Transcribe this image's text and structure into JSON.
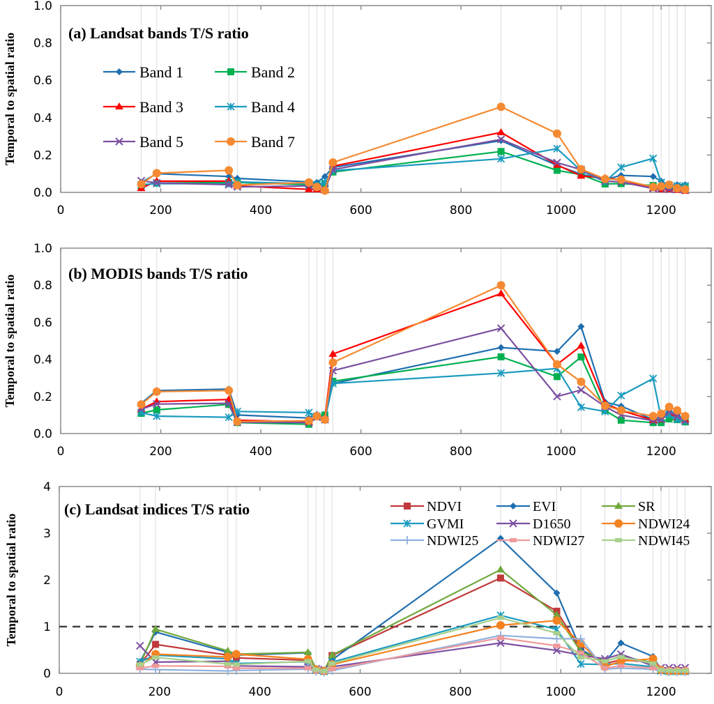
{
  "chart_data": [
    {
      "type": "line",
      "title": "(a) Landsat  bands T/S ratio",
      "xlabel": "",
      "ylabel": "Temporal to spatial ratio",
      "xlim": [
        0,
        1300
      ],
      "ylim": [
        0,
        1.0
      ],
      "xticks": [
        0,
        200,
        400,
        600,
        800,
        1000,
        1200
      ],
      "yticks": [
        0.0,
        0.2,
        0.4,
        0.6,
        0.8,
        1.0
      ],
      "ytick_labels": [
        "0.0",
        "0.2",
        "0.4",
        "0.6",
        "0.8",
        "1.0"
      ],
      "grid": "vertical lines at each observation date",
      "legend_position": "upper-left, 2 columns",
      "x": [
        161,
        192,
        336,
        353,
        496,
        512,
        528,
        544,
        880,
        992,
        1040,
        1088,
        1120,
        1184,
        1200,
        1216,
        1232,
        1248
      ],
      "series": [
        {
          "name": "Band 1",
          "color": "#1f6fb0",
          "marker": "diamond",
          "values": [
            0.053,
            0.1,
            0.085,
            0.075,
            0.056,
            0.053,
            0.085,
            0.134,
            0.277,
            0.144,
            0.097,
            0.068,
            0.091,
            0.085,
            0.06,
            0.035,
            0.041,
            0.041
          ]
        },
        {
          "name": "Band 2",
          "color": "#00b050",
          "marker": "square",
          "values": [
            0.035,
            0.05,
            0.053,
            0.053,
            0.041,
            0.035,
            0.047,
            0.109,
            0.219,
            0.118,
            0.095,
            0.045,
            0.047,
            0.037,
            0.029,
            0.025,
            0.022,
            0.029
          ]
        },
        {
          "name": "Band 3",
          "color": "#ff0000",
          "marker": "triangle",
          "values": [
            0.022,
            0.06,
            0.06,
            0.035,
            0.016,
            0.016,
            0.01,
            0.14,
            0.321,
            0.147,
            0.088,
            0.076,
            0.068,
            0.022,
            0.016,
            0.016,
            0.012,
            0.007
          ]
        },
        {
          "name": "Band 4",
          "color": "#1a9bbf",
          "marker": "asterisk",
          "values": [
            0.041,
            0.047,
            0.045,
            0.056,
            0.047,
            0.041,
            0.053,
            0.116,
            0.18,
            0.234,
            0.116,
            0.057,
            0.134,
            0.182,
            0.053,
            0.037,
            0.035,
            0.035
          ]
        },
        {
          "name": "Band 5",
          "color": "#7b4fa0",
          "marker": "x",
          "values": [
            0.062,
            0.051,
            0.041,
            0.029,
            0.035,
            0.029,
            0.016,
            0.122,
            0.284,
            0.159,
            0.122,
            0.06,
            0.056,
            0.02,
            0.02,
            0.016,
            0.016,
            0.012
          ]
        },
        {
          "name": "Band 7",
          "color": "#f58a32",
          "marker": "circle",
          "values": [
            0.044,
            0.103,
            0.118,
            0.039,
            0.053,
            0.029,
            0.01,
            0.16,
            0.458,
            0.315,
            0.124,
            0.072,
            0.068,
            0.029,
            0.032,
            0.041,
            0.022,
            0.016
          ]
        }
      ]
    },
    {
      "type": "line",
      "title": "(b) MODIS bands T/S ratio",
      "xlabel": "",
      "ylabel": "Temporal to spatial ratio",
      "xlim": [
        0,
        1300
      ],
      "ylim": [
        0,
        1.0
      ],
      "xticks": [
        0,
        200,
        400,
        600,
        800,
        1000,
        1200
      ],
      "yticks": [
        0.0,
        0.2,
        0.4,
        0.6,
        0.8,
        1.0
      ],
      "ytick_labels": [
        "0.0",
        "0.2",
        "0.4",
        "0.6",
        "0.8",
        "1.0"
      ],
      "grid": "vertical lines at each observation date",
      "x": [
        161,
        192,
        336,
        353,
        496,
        512,
        528,
        544,
        880,
        992,
        1040,
        1088,
        1120,
        1184,
        1200,
        1216,
        1232,
        1248
      ],
      "series": [
        {
          "name": "Band 1",
          "color": "#1f6fb0",
          "marker": "diamond",
          "values": [
            0.163,
            0.232,
            0.24,
            0.1,
            0.084,
            0.104,
            0.094,
            0.27,
            0.464,
            0.443,
            0.577,
            0.17,
            0.148,
            0.075,
            0.088,
            0.125,
            0.1,
            0.075
          ]
        },
        {
          "name": "Band 2",
          "color": "#00b050",
          "marker": "square",
          "values": [
            0.109,
            0.128,
            0.157,
            0.059,
            0.05,
            0.094,
            0.1,
            0.282,
            0.414,
            0.307,
            0.413,
            0.125,
            0.072,
            0.059,
            0.059,
            0.079,
            0.075,
            0.063
          ]
        },
        {
          "name": "Band 3",
          "color": "#ff0000",
          "marker": "triangle",
          "values": [
            0.132,
            0.172,
            0.184,
            0.072,
            0.063,
            0.094,
            0.082,
            0.429,
            0.755,
            0.373,
            0.473,
            0.163,
            0.125,
            0.072,
            0.075,
            0.107,
            0.088,
            0.075
          ]
        },
        {
          "name": "Band 4",
          "color": "#1a9bbf",
          "marker": "asterisk",
          "values": [
            0.113,
            0.094,
            0.088,
            0.119,
            0.113,
            0.094,
            0.075,
            0.27,
            0.326,
            0.351,
            0.142,
            0.119,
            0.205,
            0.297,
            0.082,
            0.1,
            0.075,
            0.066
          ]
        },
        {
          "name": "Band 5",
          "color": "#7b4fa0",
          "marker": "x",
          "values": [
            0.132,
            0.159,
            0.163,
            0.061,
            0.059,
            0.088,
            0.075,
            0.339,
            0.568,
            0.2,
            0.235,
            0.145,
            0.1,
            0.069,
            0.075,
            0.119,
            0.094,
            0.069
          ]
        },
        {
          "name": "Band 7",
          "color": "#f58a32",
          "marker": "circle",
          "values": [
            0.157,
            0.226,
            0.232,
            0.065,
            0.069,
            0.094,
            0.075,
            0.383,
            0.8,
            0.373,
            0.279,
            0.15,
            0.125,
            0.094,
            0.107,
            0.144,
            0.125,
            0.094
          ]
        }
      ]
    },
    {
      "type": "line",
      "title": "(c) Landsat indices T/S ratio",
      "xlabel": "",
      "ylabel": "Temporal to spatial ratio",
      "xlim": [
        0,
        1300
      ],
      "ylim": [
        0,
        4
      ],
      "xticks": [
        0,
        200,
        400,
        600,
        800,
        1000,
        1200
      ],
      "yticks": [
        0,
        1,
        2,
        3,
        4
      ],
      "ytick_labels": [
        "0",
        "1",
        "2",
        "3",
        "4"
      ],
      "grid": "vertical lines at each observation date",
      "reference_line": {
        "y": 1,
        "style": "dashed",
        "color": "#404040"
      },
      "legend_position": "upper-right, 3 columns",
      "x": [
        161,
        192,
        336,
        353,
        496,
        512,
        528,
        544,
        880,
        992,
        1040,
        1088,
        1120,
        1184,
        1200,
        1216,
        1232,
        1248
      ],
      "series": [
        {
          "name": "NDVI",
          "color": "#c0393b",
          "marker": "square",
          "values": [
            0.19,
            0.62,
            0.39,
            0.33,
            0.28,
            0.08,
            0.05,
            0.38,
            2.04,
            1.33,
            0.51,
            0.21,
            0.29,
            0.24,
            0.06,
            0.05,
            0.05,
            0.05
          ]
        },
        {
          "name": "EVI",
          "color": "#1f6fb0",
          "marker": "diamond",
          "values": [
            0.24,
            0.885,
            0.45,
            0.39,
            0.44,
            0.1,
            0.05,
            0.29,
            2.89,
            1.72,
            0.51,
            0.24,
            0.65,
            0.36,
            0.07,
            0.06,
            0.06,
            0.06
          ]
        },
        {
          "name": "SR",
          "color": "#70a83c",
          "marker": "triangle",
          "values": [
            0.19,
            0.945,
            0.48,
            0.41,
            0.45,
            0.09,
            0.06,
            0.39,
            2.22,
            1.25,
            0.46,
            0.26,
            0.36,
            0.23,
            0.06,
            0.05,
            0.05,
            0.05
          ]
        },
        {
          "name": "GVMI",
          "color": "#1a9bbf",
          "marker": "asterisk",
          "values": [
            0.25,
            0.39,
            0.31,
            0.21,
            0.25,
            0.07,
            0.04,
            0.24,
            1.24,
            0.94,
            0.2,
            0.19,
            0.21,
            0.14,
            0.05,
            0.04,
            0.04,
            0.04
          ]
        },
        {
          "name": "D1650",
          "color": "#7b4fa0",
          "marker": "x",
          "values": [
            0.59,
            0.24,
            0.26,
            0.16,
            0.14,
            0.1,
            0.08,
            0.14,
            0.65,
            0.49,
            0.39,
            0.31,
            0.41,
            0.16,
            0.12,
            0.12,
            0.12,
            0.12
          ]
        },
        {
          "name": "NDWI24",
          "color": "#f58220",
          "marker": "circle",
          "values": [
            0.16,
            0.41,
            0.35,
            0.41,
            0.3,
            0.08,
            0.05,
            0.19,
            1.03,
            1.13,
            0.64,
            0.14,
            0.26,
            0.31,
            0.07,
            0.05,
            0.05,
            0.05
          ]
        },
        {
          "name": "NDWI25",
          "color": "#8fb0e0",
          "marker": "plus",
          "values": [
            0.09,
            0.08,
            0.05,
            0.06,
            0.09,
            0.04,
            0.02,
            0.06,
            0.81,
            0.74,
            0.74,
            0.09,
            0.11,
            0.09,
            0.04,
            0.03,
            0.03,
            0.03
          ]
        },
        {
          "name": "NDWI27",
          "color": "#ee9a9a",
          "marker": "dash",
          "values": [
            0.11,
            0.16,
            0.15,
            0.11,
            0.11,
            0.06,
            0.04,
            0.09,
            0.76,
            0.59,
            0.44,
            0.11,
            0.16,
            0.11,
            0.08,
            0.08,
            0.08,
            0.08
          ]
        },
        {
          "name": "NDWI45",
          "color": "#a8d08d",
          "marker": "dash",
          "values": [
            0.19,
            0.34,
            0.2,
            0.19,
            0.26,
            0.08,
            0.05,
            0.21,
            1.19,
            0.86,
            0.34,
            0.26,
            0.35,
            0.21,
            0.07,
            0.06,
            0.06,
            0.06
          ]
        }
      ]
    }
  ]
}
